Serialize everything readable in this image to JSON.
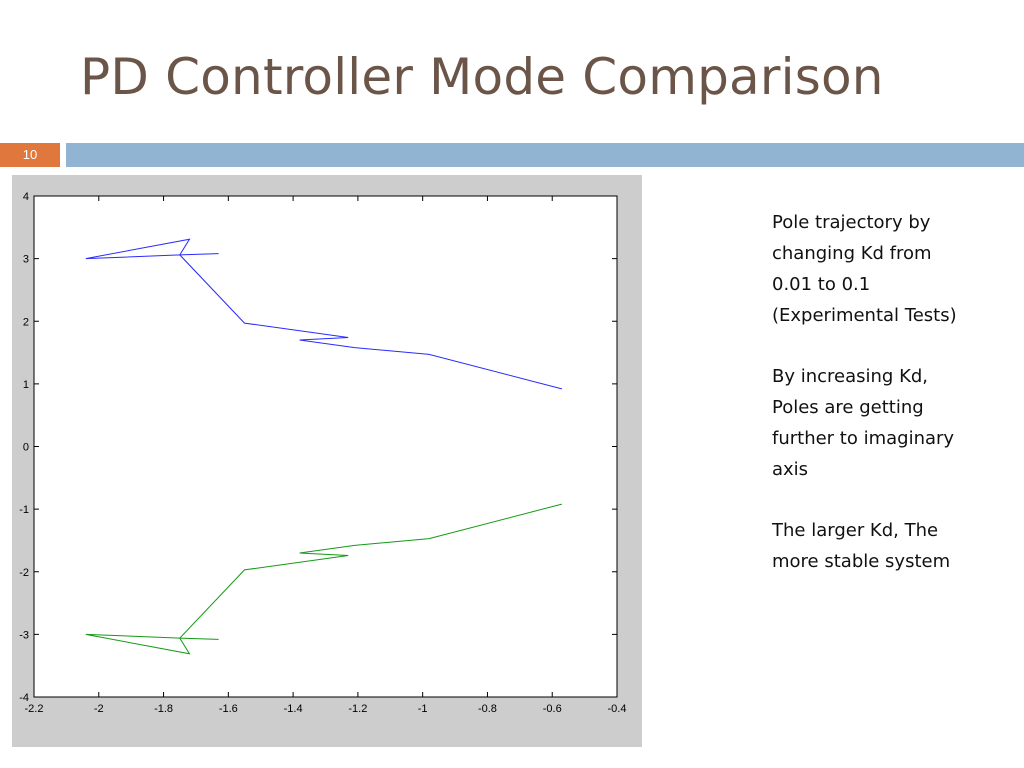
{
  "slide": {
    "title": "PD Controller Mode Comparison",
    "number": "10",
    "title_color": "#6b5548",
    "number_badge_color": "#e0783e",
    "band_color": "#92b4d3",
    "notes": [
      [
        "Pole trajectory by",
        "changing Kd from",
        "0.01 to 0.1",
        "(Experimental Tests)"
      ],
      [
        "By increasing Kd,",
        "Poles are getting",
        "further to imaginary",
        "axis"
      ],
      [
        "The larger Kd, The",
        "more stable system"
      ]
    ]
  },
  "chart_data": {
    "type": "line",
    "title": "",
    "xlabel": "",
    "ylabel": "",
    "xlim": [
      -2.2,
      -0.4
    ],
    "ylim": [
      -4,
      4
    ],
    "x_ticks": [
      -2.2,
      -2,
      -1.8,
      -1.6,
      -1.4,
      -1.2,
      -1,
      -0.8,
      -0.6,
      -0.4
    ],
    "x_tick_labels": [
      "-2.2",
      "-2",
      "-1.8",
      "-1.6",
      "-1.4",
      "-1.2",
      "-1",
      "-0.8",
      "-0.6",
      "-0.4"
    ],
    "y_ticks": [
      4,
      3,
      2,
      1,
      0,
      -1,
      -2,
      -3,
      -4
    ],
    "y_tick_labels": [
      "4",
      "3",
      "2",
      "1",
      "0",
      "-1",
      "-2",
      "-3",
      "-4"
    ],
    "grid": false,
    "series": [
      {
        "color": "#2a2aff",
        "x": [
          -0.57,
          -0.98,
          -1.21,
          -1.38,
          -1.23,
          -1.55,
          -1.75,
          -1.63,
          -1.75,
          -1.72,
          -2.04,
          -1.75
        ],
        "y": [
          0.92,
          1.47,
          1.58,
          1.7,
          1.74,
          1.97,
          3.06,
          3.08,
          3.06,
          3.31,
          3.0,
          3.06
        ]
      },
      {
        "color": "#169916",
        "x": [
          -0.57,
          -0.98,
          -1.21,
          -1.38,
          -1.23,
          -1.55,
          -1.75,
          -1.63,
          -1.75,
          -1.72,
          -2.04,
          -1.75
        ],
        "y": [
          -0.92,
          -1.47,
          -1.58,
          -1.7,
          -1.74,
          -1.97,
          -3.06,
          -3.08,
          -3.06,
          -3.31,
          -3.0,
          -3.06
        ]
      }
    ]
  }
}
